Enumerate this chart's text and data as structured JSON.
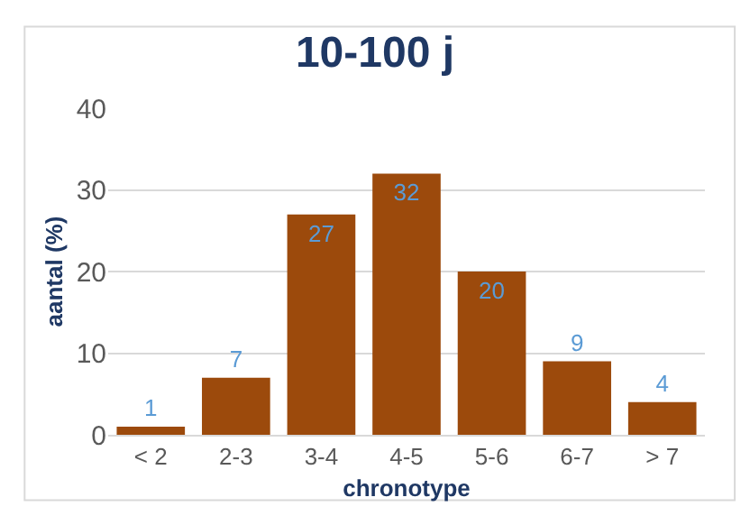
{
  "chart_data": {
    "type": "bar",
    "title": "10-100 j",
    "xlabel": "chronotype",
    "ylabel": "aantal (%)",
    "categories": [
      "< 2",
      "2-3",
      "3-4",
      "4-5",
      "5-6",
      "6-7",
      "> 7"
    ],
    "values": [
      1,
      7,
      27,
      32,
      20,
      9,
      4
    ],
    "color": "#9c4a0c",
    "data_labels": true,
    "ylim": [
      0,
      40
    ],
    "yticks": [
      0,
      10,
      20,
      30,
      40
    ],
    "grid": "y",
    "legend": false
  }
}
